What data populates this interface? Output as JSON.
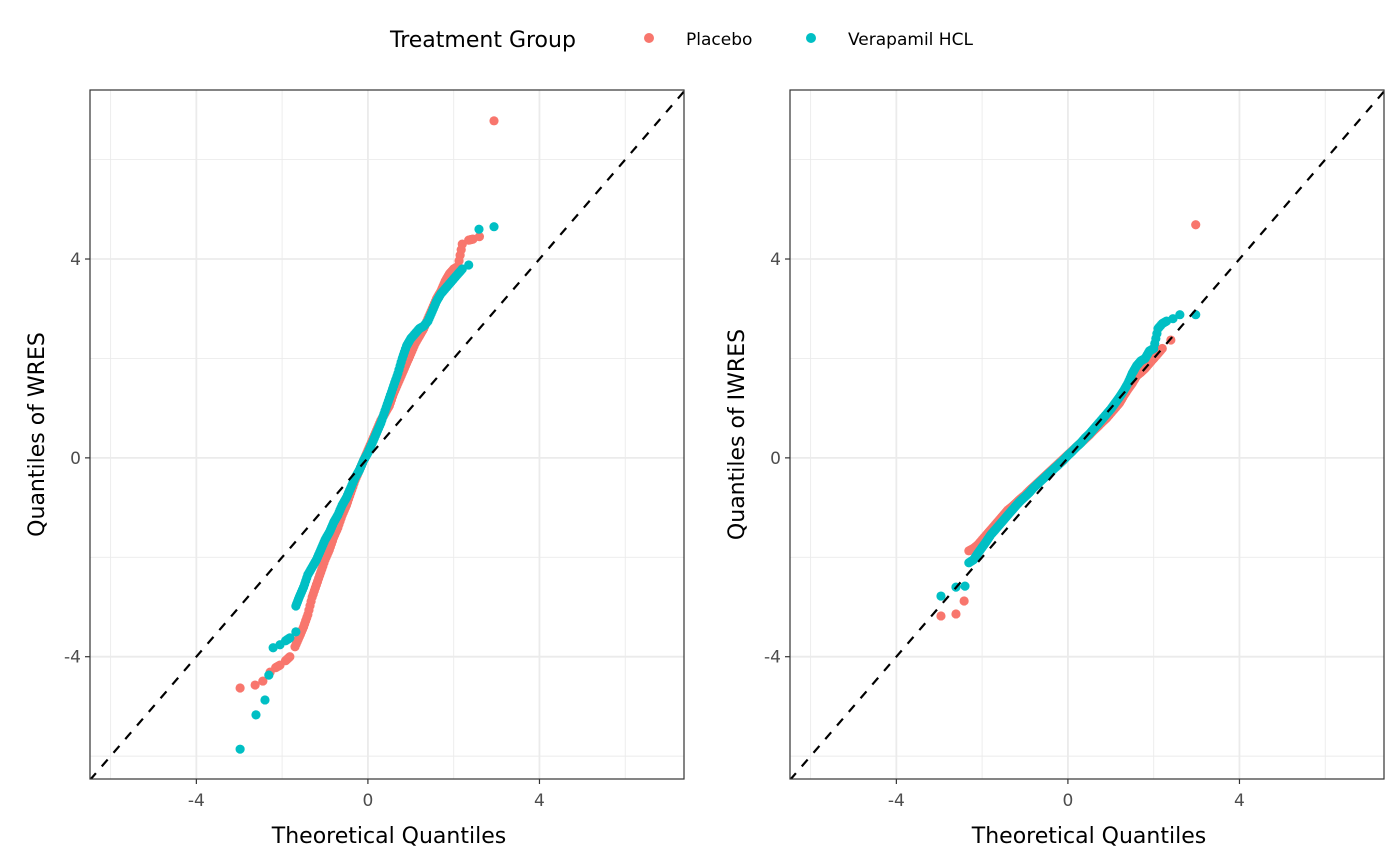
{
  "legend": {
    "title": "Treatment Group",
    "position": "top",
    "entries": [
      {
        "label": "Placebo",
        "color": "#F8766D"
      },
      {
        "label": "Verapamil HCL",
        "color": "#00BFC4"
      }
    ]
  },
  "chart_data": [
    {
      "type": "scatter",
      "title": "",
      "xlabel": "Theoretical Quantiles",
      "ylabel": "Quantiles of WRES",
      "xlim": [
        -6.48,
        7.37
      ],
      "ylim": [
        -6.46,
        7.4
      ],
      "xticks": [
        -4,
        0,
        4
      ],
      "yticks": [
        -4,
        0,
        4
      ],
      "xtick_labels": [
        "-4",
        "0",
        "4"
      ],
      "ytick_labels": [
        "-4",
        "0",
        "4"
      ],
      "grid": true,
      "reference_line": {
        "slope": 1,
        "intercept": 0,
        "style": "dashed"
      },
      "series": [
        {
          "name": "Placebo",
          "color": "#F8766D",
          "points": [
            [
              -2.98,
              -4.63
            ],
            [
              -2.63,
              -4.57
            ],
            [
              -2.45,
              -4.49
            ],
            [
              -2.28,
              -4.31
            ],
            [
              -2.15,
              -4.22
            ],
            [
              -2.05,
              -4.17
            ],
            [
              -1.92,
              -4.08
            ],
            [
              -1.82,
              -4.0
            ],
            [
              -1.7,
              -3.8
            ],
            [
              -1.6,
              -3.6
            ],
            [
              -1.5,
              -3.4
            ],
            [
              -1.4,
              -3.15
            ],
            [
              -1.3,
              -2.8
            ],
            [
              -1.2,
              -2.55
            ],
            [
              -1.1,
              -2.3
            ],
            [
              -1.0,
              -2.05
            ],
            [
              -0.9,
              -1.85
            ],
            [
              -0.8,
              -1.6
            ],
            [
              -0.7,
              -1.4
            ],
            [
              -0.6,
              -1.15
            ],
            [
              -0.5,
              -0.95
            ],
            [
              -0.4,
              -0.7
            ],
            [
              -0.3,
              -0.45
            ],
            [
              -0.2,
              -0.25
            ],
            [
              -0.1,
              -0.05
            ],
            [
              0.0,
              0.15
            ],
            [
              0.1,
              0.35
            ],
            [
              0.2,
              0.55
            ],
            [
              0.3,
              0.75
            ],
            [
              0.4,
              0.9
            ],
            [
              0.5,
              1.05
            ],
            [
              0.6,
              1.3
            ],
            [
              0.7,
              1.5
            ],
            [
              0.8,
              1.7
            ],
            [
              0.9,
              1.9
            ],
            [
              1.0,
              2.1
            ],
            [
              1.1,
              2.3
            ],
            [
              1.2,
              2.45
            ],
            [
              1.3,
              2.6
            ],
            [
              1.4,
              2.8
            ],
            [
              1.5,
              3.0
            ],
            [
              1.6,
              3.2
            ],
            [
              1.7,
              3.35
            ],
            [
              1.8,
              3.55
            ],
            [
              1.9,
              3.7
            ],
            [
              2.0,
              3.8
            ],
            [
              2.1,
              3.85
            ],
            [
              2.2,
              4.3
            ],
            [
              2.35,
              4.38
            ],
            [
              2.45,
              4.4
            ],
            [
              2.6,
              4.45
            ],
            [
              2.94,
              6.78
            ]
          ]
        },
        {
          "name": "Verapamil HCL",
          "color": "#00BFC4",
          "points": [
            [
              -2.98,
              -5.86
            ],
            [
              -2.61,
              -5.17
            ],
            [
              -2.4,
              -4.87
            ],
            [
              -2.31,
              -4.37
            ],
            [
              -2.21,
              -3.82
            ],
            [
              -2.05,
              -3.76
            ],
            [
              -1.92,
              -3.68
            ],
            [
              -1.82,
              -3.62
            ],
            [
              -1.68,
              -3.5
            ],
            [
              -1.68,
              -2.98
            ],
            [
              -1.6,
              -2.8
            ],
            [
              -1.5,
              -2.6
            ],
            [
              -1.4,
              -2.35
            ],
            [
              -1.3,
              -2.2
            ],
            [
              -1.2,
              -2.05
            ],
            [
              -1.1,
              -1.85
            ],
            [
              -1.0,
              -1.65
            ],
            [
              -0.9,
              -1.5
            ],
            [
              -0.8,
              -1.3
            ],
            [
              -0.7,
              -1.15
            ],
            [
              -0.6,
              -0.95
            ],
            [
              -0.5,
              -0.8
            ],
            [
              -0.4,
              -0.6
            ],
            [
              -0.3,
              -0.4
            ],
            [
              -0.2,
              -0.25
            ],
            [
              -0.1,
              -0.05
            ],
            [
              0.0,
              0.1
            ],
            [
              0.1,
              0.3
            ],
            [
              0.2,
              0.5
            ],
            [
              0.3,
              0.7
            ],
            [
              0.4,
              0.95
            ],
            [
              0.5,
              1.2
            ],
            [
              0.6,
              1.45
            ],
            [
              0.7,
              1.7
            ],
            [
              0.8,
              2.0
            ],
            [
              0.9,
              2.25
            ],
            [
              1.0,
              2.4
            ],
            [
              1.1,
              2.5
            ],
            [
              1.2,
              2.6
            ],
            [
              1.3,
              2.65
            ],
            [
              1.4,
              2.75
            ],
            [
              1.5,
              2.95
            ],
            [
              1.6,
              3.15
            ],
            [
              1.7,
              3.3
            ],
            [
              1.8,
              3.4
            ],
            [
              1.9,
              3.5
            ],
            [
              2.0,
              3.6
            ],
            [
              2.1,
              3.7
            ],
            [
              2.2,
              3.8
            ],
            [
              2.35,
              3.88
            ],
            [
              2.59,
              4.6
            ],
            [
              2.94,
              4.65
            ]
          ]
        }
      ]
    },
    {
      "type": "scatter",
      "title": "",
      "xlabel": "Theoretical Quantiles",
      "ylabel": "Quantiles of IWRES",
      "xlim": [
        -6.48,
        7.37
      ],
      "ylim": [
        -6.46,
        7.4
      ],
      "xticks": [
        -4,
        0,
        4
      ],
      "yticks": [
        -4,
        0,
        4
      ],
      "xtick_labels": [
        "-4",
        "0",
        "4"
      ],
      "ytick_labels": [
        "-4",
        "0",
        "4"
      ],
      "grid": true,
      "reference_line": {
        "slope": 1,
        "intercept": 0,
        "style": "dashed"
      },
      "series": [
        {
          "name": "Placebo",
          "color": "#F8766D",
          "points": [
            [
              -2.96,
              -3.18
            ],
            [
              -2.61,
              -3.14
            ],
            [
              -2.42,
              -2.88
            ],
            [
              -2.31,
              -1.87
            ],
            [
              -2.2,
              -1.82
            ],
            [
              -2.1,
              -1.75
            ],
            [
              -2.0,
              -1.65
            ],
            [
              -1.9,
              -1.55
            ],
            [
              -1.8,
              -1.45
            ],
            [
              -1.7,
              -1.35
            ],
            [
              -1.6,
              -1.25
            ],
            [
              -1.5,
              -1.15
            ],
            [
              -1.4,
              -1.05
            ],
            [
              -1.3,
              -0.98
            ],
            [
              -1.2,
              -0.9
            ],
            [
              -1.1,
              -0.82
            ],
            [
              -1.0,
              -0.75
            ],
            [
              -0.9,
              -0.66
            ],
            [
              -0.8,
              -0.58
            ],
            [
              -0.7,
              -0.5
            ],
            [
              -0.6,
              -0.42
            ],
            [
              -0.5,
              -0.34
            ],
            [
              -0.4,
              -0.26
            ],
            [
              -0.3,
              -0.18
            ],
            [
              -0.2,
              -0.1
            ],
            [
              -0.1,
              -0.02
            ],
            [
              0.0,
              0.06
            ],
            [
              0.1,
              0.14
            ],
            [
              0.2,
              0.22
            ],
            [
              0.3,
              0.3
            ],
            [
              0.4,
              0.38
            ],
            [
              0.5,
              0.46
            ],
            [
              0.6,
              0.55
            ],
            [
              0.7,
              0.63
            ],
            [
              0.8,
              0.72
            ],
            [
              0.9,
              0.8
            ],
            [
              1.0,
              0.9
            ],
            [
              1.1,
              1.0
            ],
            [
              1.2,
              1.1
            ],
            [
              1.3,
              1.25
            ],
            [
              1.4,
              1.38
            ],
            [
              1.5,
              1.5
            ],
            [
              1.6,
              1.65
            ],
            [
              1.7,
              1.72
            ],
            [
              1.8,
              1.8
            ],
            [
              1.9,
              1.9
            ],
            [
              2.0,
              2.0
            ],
            [
              2.1,
              2.1
            ],
            [
              2.2,
              2.2
            ],
            [
              2.4,
              2.37
            ],
            [
              2.98,
              4.69
            ]
          ]
        },
        {
          "name": "Verapamil HCL",
          "color": "#00BFC4",
          "points": [
            [
              -2.96,
              -2.78
            ],
            [
              -2.61,
              -2.6
            ],
            [
              -2.4,
              -2.58
            ],
            [
              -2.31,
              -2.11
            ],
            [
              -2.2,
              -2.05
            ],
            [
              -2.1,
              -1.92
            ],
            [
              -2.0,
              -1.8
            ],
            [
              -1.9,
              -1.68
            ],
            [
              -1.8,
              -1.55
            ],
            [
              -1.7,
              -1.45
            ],
            [
              -1.6,
              -1.35
            ],
            [
              -1.5,
              -1.25
            ],
            [
              -1.4,
              -1.15
            ],
            [
              -1.3,
              -1.05
            ],
            [
              -1.2,
              -0.95
            ],
            [
              -1.1,
              -0.86
            ],
            [
              -1.0,
              -0.78
            ],
            [
              -0.9,
              -0.7
            ],
            [
              -0.8,
              -0.6
            ],
            [
              -0.7,
              -0.52
            ],
            [
              -0.6,
              -0.44
            ],
            [
              -0.5,
              -0.36
            ],
            [
              -0.4,
              -0.28
            ],
            [
              -0.3,
              -0.2
            ],
            [
              -0.2,
              -0.12
            ],
            [
              -0.1,
              -0.04
            ],
            [
              0.0,
              0.05
            ],
            [
              0.1,
              0.13
            ],
            [
              0.2,
              0.22
            ],
            [
              0.3,
              0.3
            ],
            [
              0.4,
              0.4
            ],
            [
              0.5,
              0.48
            ],
            [
              0.6,
              0.58
            ],
            [
              0.7,
              0.68
            ],
            [
              0.8,
              0.78
            ],
            [
              0.9,
              0.88
            ],
            [
              1.0,
              0.98
            ],
            [
              1.1,
              1.1
            ],
            [
              1.2,
              1.22
            ],
            [
              1.3,
              1.35
            ],
            [
              1.4,
              1.5
            ],
            [
              1.5,
              1.7
            ],
            [
              1.6,
              1.85
            ],
            [
              1.7,
              1.95
            ],
            [
              1.8,
              2.0
            ],
            [
              1.9,
              2.15
            ],
            [
              2.0,
              2.2
            ],
            [
              2.1,
              2.6
            ],
            [
              2.2,
              2.7
            ],
            [
              2.3,
              2.75
            ],
            [
              2.45,
              2.8
            ],
            [
              2.61,
              2.88
            ],
            [
              2.98,
              2.88
            ]
          ]
        }
      ]
    }
  ]
}
